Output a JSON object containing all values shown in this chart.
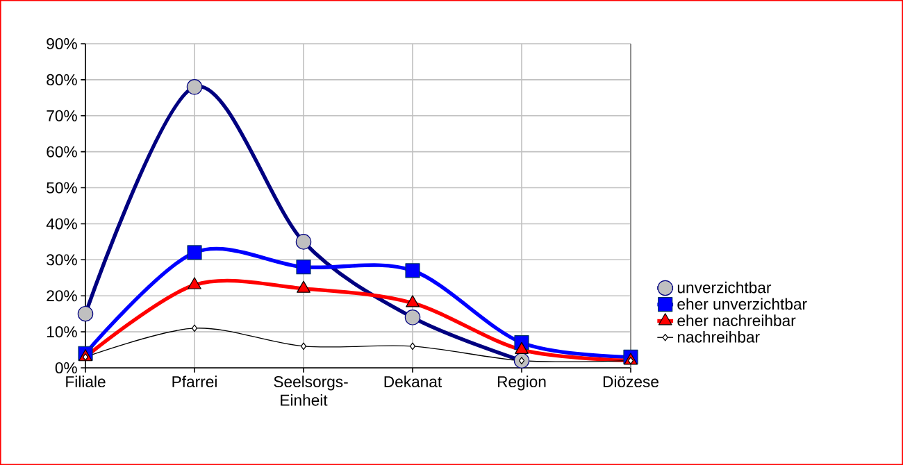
{
  "chart_data": {
    "type": "line",
    "categories": [
      "Filiale",
      "Pfarrei",
      "Seelsorgs-Einheit",
      "Dekanat",
      "Region",
      "Diözese"
    ],
    "ylim": [
      0,
      90
    ],
    "yticks": [
      {
        "value": 0,
        "label": "0%"
      },
      {
        "value": 10,
        "label": "10%"
      },
      {
        "value": 20,
        "label": "20%"
      },
      {
        "value": 30,
        "label": "30%"
      },
      {
        "value": 40,
        "label": "40%"
      },
      {
        "value": 50,
        "label": "50%"
      },
      {
        "value": 60,
        "label": "60%"
      },
      {
        "value": 70,
        "label": "70%"
      },
      {
        "value": 80,
        "label": "80%"
      },
      {
        "value": 90,
        "label": "90%"
      }
    ],
    "grid": true,
    "legend": "right",
    "series": [
      {
        "name": "unverzichtbar",
        "color": "#000080",
        "marker": "circle",
        "values": [
          15,
          78,
          35,
          14,
          2,
          null
        ]
      },
      {
        "name": "eher unverzichtbar",
        "color": "#0000ff",
        "marker": "square",
        "values": [
          4,
          32,
          28,
          27,
          7,
          3
        ]
      },
      {
        "name": "eher nachreihbar",
        "color": "#ff0000",
        "marker": "triangle",
        "values": [
          3,
          23,
          22,
          18,
          5,
          2
        ]
      },
      {
        "name": "nachreihbar",
        "color": "#000000",
        "marker": "diamond",
        "values": [
          3,
          11,
          6,
          6,
          2,
          2
        ]
      }
    ]
  }
}
